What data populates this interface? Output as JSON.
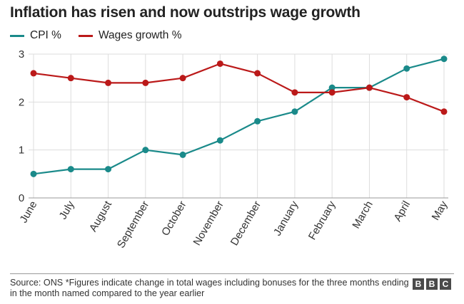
{
  "chart_data": {
    "type": "line",
    "title": "Inflation has risen and now outstrips wage growth",
    "categories": [
      "June",
      "July",
      "August",
      "September",
      "October",
      "November",
      "December",
      "January",
      "February",
      "March",
      "April",
      "May"
    ],
    "series": [
      {
        "name": "CPI %",
        "color": "#1a8a8a",
        "values": [
          0.5,
          0.6,
          0.6,
          1.0,
          0.9,
          1.2,
          1.6,
          1.8,
          2.3,
          2.3,
          2.7,
          2.9
        ]
      },
      {
        "name": "Wages growth %",
        "color": "#bb1919",
        "values": [
          2.6,
          2.5,
          2.4,
          2.4,
          2.5,
          2.8,
          2.6,
          2.2,
          2.2,
          2.3,
          2.1,
          1.8
        ]
      }
    ],
    "yticks": [
      0,
      1,
      2,
      3
    ],
    "ylim": [
      0,
      3
    ],
    "grid": true,
    "legend_position": "top-left"
  },
  "footer": {
    "source": "Source: ONS *Figures indicate change in total wages including bonuses for the three months ending in the month named compared to the year earlier",
    "logo_letters": [
      "B",
      "B",
      "C"
    ]
  }
}
